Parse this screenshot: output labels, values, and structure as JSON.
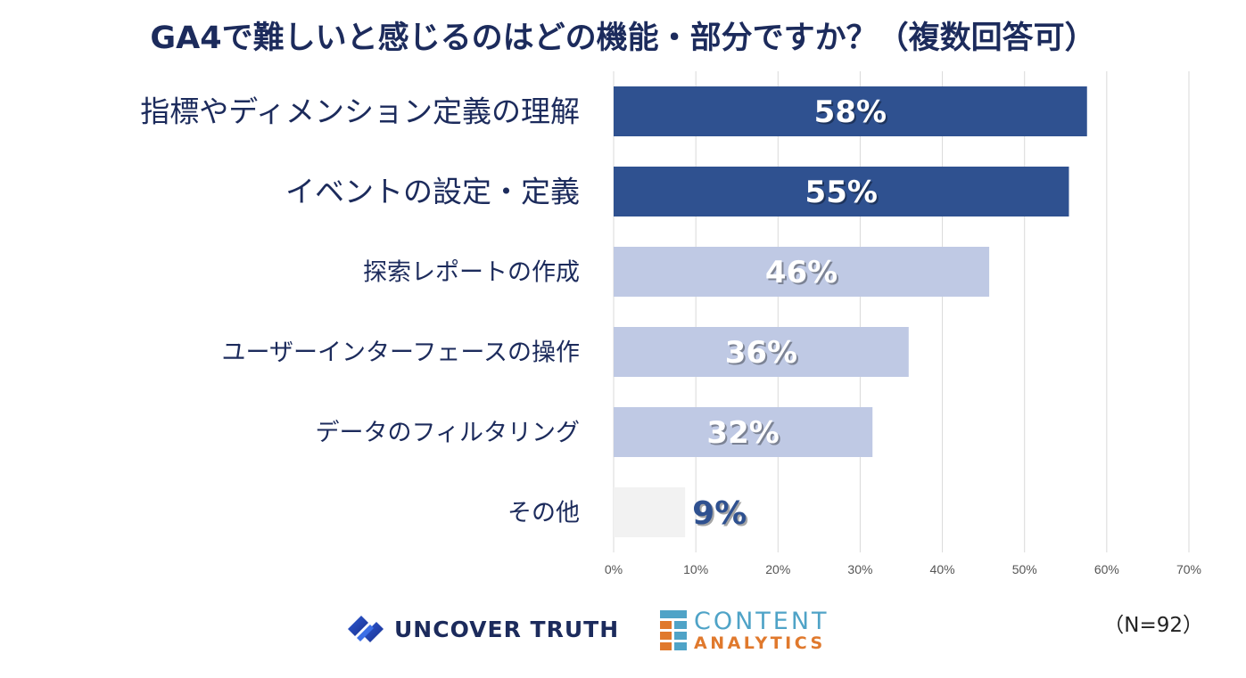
{
  "title": "GA4で難しいと感じるのはどの機能・部分ですか？（複数回答可）",
  "sample_note": "（N=92）",
  "logos": {
    "uncover_truth": "UNCOVER TRUTH",
    "content_analytics_line1": "CONTENT",
    "content_analytics_line2": "ANALYTICS"
  },
  "colors": {
    "dark_bar": "#2f5190",
    "light_bar": "#bfc9e4",
    "other_bar": "#f2f2f2",
    "title": "#1c2b5c"
  },
  "chart_data": {
    "type": "bar",
    "orientation": "horizontal",
    "title": "GA4で難しいと感じるのはどの機能・部分ですか？（複数回答可）",
    "categories": [
      "指標やディメンション定義の理解",
      "イベントの設定・定義",
      "探索レポートの作成",
      "ユーザーインターフェースの操作",
      "データのフィルタリング",
      "その他"
    ],
    "values": [
      57.6,
      55.4,
      45.7,
      35.9,
      31.5,
      8.7
    ],
    "value_labels": [
      "58%",
      "55%",
      "46%",
      "36%",
      "32%",
      "9%"
    ],
    "x_ticks": [
      "0%",
      "10%",
      "20%",
      "30%",
      "40%",
      "50%",
      "60%",
      "70%"
    ],
    "xlim": [
      0,
      70
    ],
    "grid": true,
    "legend": "none"
  }
}
